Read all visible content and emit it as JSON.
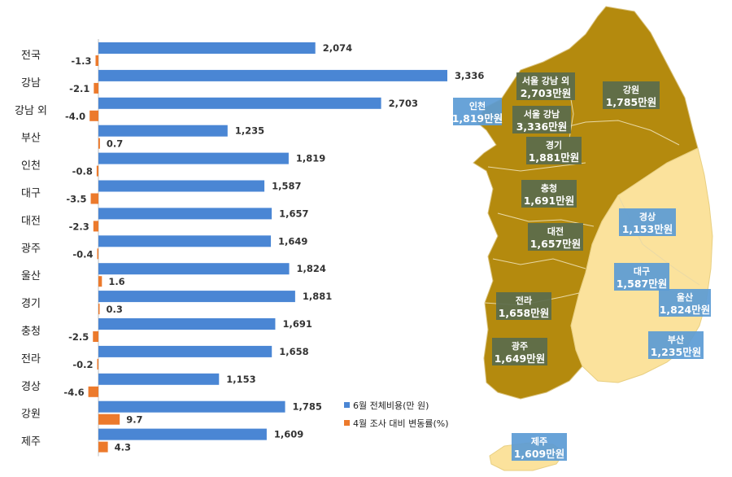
{
  "chart_data": {
    "type": "bar",
    "orientation": "horizontal",
    "categories": [
      "전국",
      "강남",
      "강남 외",
      "부산",
      "인천",
      "대구",
      "대전",
      "광주",
      "울산",
      "경기",
      "충청",
      "전라",
      "경상",
      "강원",
      "제주"
    ],
    "series": [
      {
        "name": "6월 전체비용(만 원)",
        "color": "#4a86d4",
        "values": [
          2074,
          3336,
          2703,
          1235,
          1819,
          1587,
          1657,
          1649,
          1824,
          1881,
          1691,
          1658,
          1153,
          1785,
          1609
        ],
        "labels": [
          "2,074",
          "3,336",
          "2,703",
          "1,235",
          "1,819",
          "1,587",
          "1,657",
          "1,649",
          "1,824",
          "1,881",
          "1,691",
          "1,658",
          "1,153",
          "1,785",
          "1,609"
        ]
      },
      {
        "name": "4월 조사 대비 변동률(%)",
        "color": "#ec7a2c",
        "values": [
          -1.3,
          -2.1,
          -4.0,
          0.7,
          -0.8,
          -3.5,
          -2.3,
          -0.4,
          1.6,
          0.3,
          -2.5,
          -0.2,
          -4.6,
          9.7,
          4.3
        ],
        "labels": [
          "-1.3",
          "-2.1",
          "-4.0",
          "0.7",
          "-0.8",
          "-3.5",
          "-2.3",
          "-0.4",
          "1.6",
          "0.3",
          "-2.5",
          "-0.2",
          "-4.6",
          "9.7",
          "4.3"
        ]
      }
    ],
    "legend_position": "bottom-right",
    "grid": false
  },
  "map": {
    "colors": {
      "dark_region": "#b48a0e",
      "light_region": "#fbe29c",
      "label_dark_bg": "#5a6b4c",
      "label_blue_bg": "#5b9bd5"
    },
    "labels": [
      {
        "name": "서울 강남 외",
        "value": "2,703만원",
        "style": "dark"
      },
      {
        "name": "강원",
        "value": "1,785만원",
        "style": "dark"
      },
      {
        "name": "인천",
        "value": "1,819만원",
        "style": "blue"
      },
      {
        "name": "서울 강남",
        "value": "3,336만원",
        "style": "dark"
      },
      {
        "name": "경기",
        "value": "1,881만원",
        "style": "dark"
      },
      {
        "name": "충청",
        "value": "1,691만원",
        "style": "dark"
      },
      {
        "name": "경상",
        "value": "1,153만원",
        "style": "blue"
      },
      {
        "name": "대전",
        "value": "1,657만원",
        "style": "dark"
      },
      {
        "name": "대구",
        "value": "1,587만원",
        "style": "blue"
      },
      {
        "name": "울산",
        "value": "1,824만원",
        "style": "blue"
      },
      {
        "name": "전라",
        "value": "1,658만원",
        "style": "dark"
      },
      {
        "name": "부산",
        "value": "1,235만원",
        "style": "blue"
      },
      {
        "name": "광주",
        "value": "1,649만원",
        "style": "dark"
      },
      {
        "name": "제주",
        "value": "1,609만원",
        "style": "blue"
      }
    ]
  }
}
